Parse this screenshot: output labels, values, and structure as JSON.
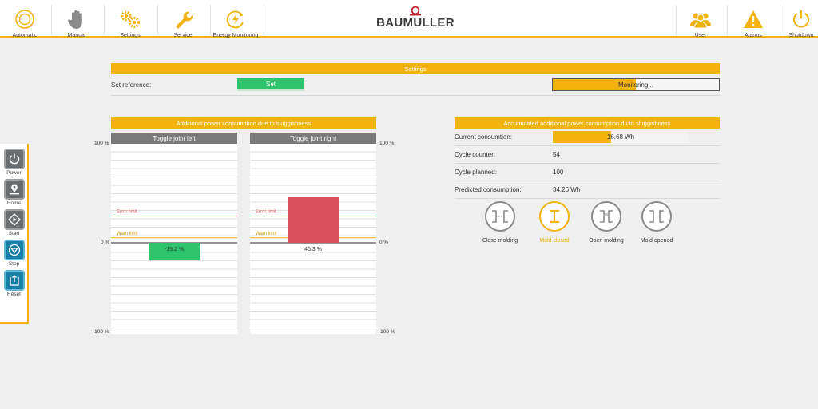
{
  "nav": {
    "items": [
      {
        "label": "Automatic",
        "icon": "automatic-icon"
      },
      {
        "label": "Manual",
        "icon": "hand-icon"
      },
      {
        "label": "Settings",
        "icon": "gears-icon"
      },
      {
        "label": "Service",
        "icon": "wrench-icon"
      },
      {
        "label": "Energy Monitoring",
        "icon": "energy-icon"
      }
    ],
    "right_items": [
      {
        "label": "User",
        "icon": "users-icon"
      },
      {
        "label": "Alarms",
        "icon": "warning-icon"
      },
      {
        "label": "Shutdown",
        "icon": "power-icon"
      }
    ],
    "logo": "BAUMULLER"
  },
  "sidebar": {
    "items": [
      {
        "label": "Power",
        "icon": "power-icon"
      },
      {
        "label": "Home",
        "icon": "home-icon"
      },
      {
        "label": "Start",
        "icon": "start-icon"
      },
      {
        "label": "Stop",
        "icon": "stop-icon"
      },
      {
        "label": "Reset",
        "icon": "reset-icon"
      }
    ]
  },
  "settings": {
    "title": "Settings",
    "row_label": "Set reference:",
    "set_label": "Set",
    "monitoring_label": "Monitoring...",
    "monitoring_progress": 0.5
  },
  "left_section": {
    "title": "Additional power consumption due to sluggishness",
    "axis_top": "100 %",
    "axis_mid": "0 %",
    "axis_bottom": "-100 %",
    "error_limit_label": "Error limit",
    "warn_limit_label": "Warn limit"
  },
  "chart_data": [
    {
      "type": "bar",
      "title": "Toggle joint left",
      "categories": [
        "Toggle joint left"
      ],
      "values": [
        -19.2
      ],
      "value_label": "-19.2 %",
      "ylim": [
        -100,
        100
      ],
      "error_limit": 27,
      "warn_limit": 5,
      "color": "#2ec36d"
    },
    {
      "type": "bar",
      "title": "Toggle joint right",
      "categories": [
        "Toggle joint right"
      ],
      "values": [
        46.3
      ],
      "value_label": "46.3 %",
      "ylim": [
        -100,
        100
      ],
      "error_limit": 27,
      "warn_limit": 5,
      "color": "#d9505c"
    }
  ],
  "right_section": {
    "title": "Accumulated additional power consumption du to sluggishness",
    "rows": [
      {
        "label": "Current consumtion:",
        "value": "16.68 Wh",
        "progress": 0.43
      },
      {
        "label": "Cycle counter:",
        "value": "54"
      },
      {
        "label": "Cycle planned:",
        "value": "100"
      },
      {
        "label": "Predicted consumption:",
        "value": "34.26 Wh"
      }
    ],
    "molds": [
      {
        "label": "Close molding",
        "icon": "close-molding-icon",
        "active": false
      },
      {
        "label": "Mold closed",
        "icon": "mold-closed-icon",
        "active": true
      },
      {
        "label": "Open molding",
        "icon": "open-molding-icon",
        "active": false
      },
      {
        "label": "Mold opened",
        "icon": "mold-opened-icon",
        "active": false
      }
    ]
  },
  "colors": {
    "accent": "#f2b20f",
    "ok": "#2ec36d",
    "error": "#d9505c"
  }
}
